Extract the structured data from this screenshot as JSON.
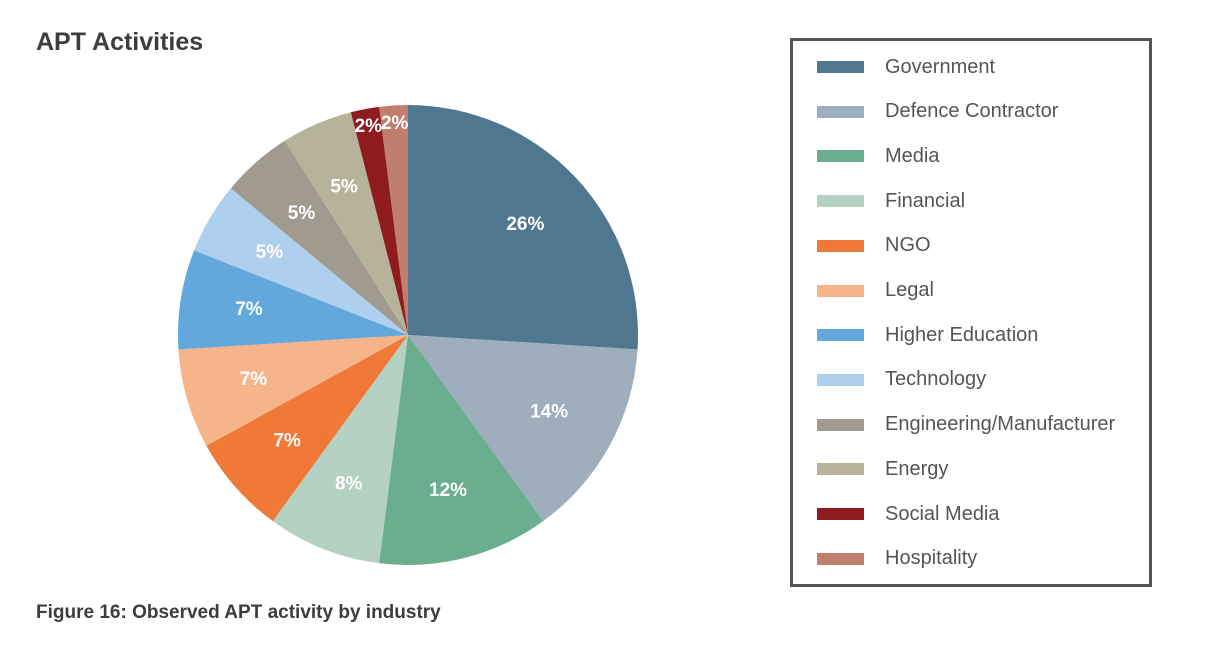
{
  "chart_title": "APT Activities",
  "caption": "Figure 16: Observed APT activity by industry",
  "chart_data": {
    "type": "pie",
    "title": "APT Activities",
    "legend_position": "right",
    "slices": [
      {
        "label": "Government",
        "value": 26,
        "display": "26%",
        "color": "#4f7790"
      },
      {
        "label": "Defence Contractor",
        "value": 14,
        "display": "14%",
        "color": "#9eaebc"
      },
      {
        "label": "Media",
        "value": 12,
        "display": "12%",
        "color": "#6aae8f"
      },
      {
        "label": "Financial",
        "value": 8,
        "display": "8%",
        "color": "#b4d1c3"
      },
      {
        "label": "NGO",
        "value": 7,
        "display": "7%",
        "color": "#f07937"
      },
      {
        "label": "Legal",
        "value": 7,
        "display": "7%",
        "color": "#f6b48b"
      },
      {
        "label": "Higher Education",
        "value": 7,
        "display": "7%",
        "color": "#62a8dd"
      },
      {
        "label": "Technology",
        "value": 5,
        "display": "5%",
        "color": "#afcfee"
      },
      {
        "label": "Engineering/Manufacturer",
        "value": 5,
        "display": "5%",
        "color": "#a09b8e"
      },
      {
        "label": "Energy",
        "value": 5,
        "display": "5%",
        "color": "#b7b39a"
      },
      {
        "label": "Social Media",
        "value": 2,
        "display": "2%",
        "color": "#8e1c1e"
      },
      {
        "label": "Hospitality",
        "value": 2,
        "display": "2%",
        "color": "#c07f6e"
      }
    ]
  }
}
